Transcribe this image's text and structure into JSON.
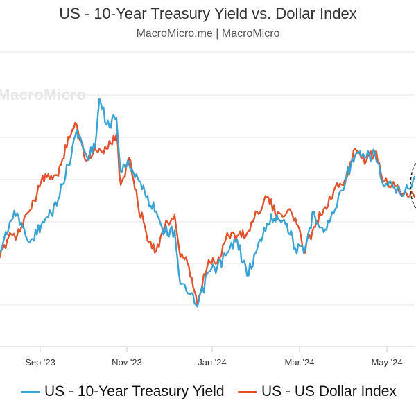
{
  "header": {
    "title": "US - 10-Year Treasury Yield vs. Dollar Index",
    "subtitle": "MacroMicro.me | MacroMicro",
    "watermark": "MacroMicro"
  },
  "colors": {
    "treasury_yield": "#3aa3d2",
    "dollar_index": "#e0532d",
    "gridline": "#e6e6e6",
    "axis": "#cccccc"
  },
  "chart_data": {
    "type": "line",
    "title": "US - 10-Year Treasury Yield vs. Dollar Index",
    "subtitle": "MacroMicro.me | MacroMicro",
    "xlabel": "",
    "ylabel": "",
    "x_ticks": [
      "Sep '23",
      "Nov '23",
      "Jan '24",
      "Mar '24",
      "May '24"
    ],
    "grid": true,
    "legend_position": "bottom",
    "x_range": [
      "2023-08-10",
      "2024-05-28"
    ],
    "series": [
      {
        "name": "US - 10-Year Treasury Yield",
        "points": [
          [
            "2023-08-10",
            4.11
          ],
          [
            "2023-08-17",
            4.28
          ],
          [
            "2023-08-22",
            4.33
          ],
          [
            "2023-08-28",
            4.2
          ],
          [
            "2023-09-01",
            4.18
          ],
          [
            "2023-09-08",
            4.26
          ],
          [
            "2023-09-15",
            4.33
          ],
          [
            "2023-09-20",
            4.41
          ],
          [
            "2023-09-27",
            4.61
          ],
          [
            "2023-10-03",
            4.81
          ],
          [
            "2023-10-10",
            4.66
          ],
          [
            "2023-10-16",
            4.71
          ],
          [
            "2023-10-19",
            4.99
          ],
          [
            "2023-10-24",
            4.84
          ],
          [
            "2023-10-31",
            4.88
          ],
          [
            "2023-11-03",
            4.57
          ],
          [
            "2023-11-09",
            4.62
          ],
          [
            "2023-11-15",
            4.53
          ],
          [
            "2023-11-21",
            4.42
          ],
          [
            "2023-11-28",
            4.34
          ],
          [
            "2023-12-04",
            4.22
          ],
          [
            "2023-12-11",
            4.23
          ],
          [
            "2023-12-15",
            3.92
          ],
          [
            "2023-12-20",
            3.87
          ],
          [
            "2023-12-27",
            3.79
          ],
          [
            "2024-01-04",
            3.99
          ],
          [
            "2024-01-10",
            4.02
          ],
          [
            "2024-01-17",
            4.1
          ],
          [
            "2024-01-24",
            4.18
          ],
          [
            "2024-01-31",
            3.97
          ],
          [
            "2024-02-07",
            4.12
          ],
          [
            "2024-02-14",
            4.27
          ],
          [
            "2024-02-21",
            4.32
          ],
          [
            "2024-02-28",
            4.27
          ],
          [
            "2024-03-05",
            4.13
          ],
          [
            "2024-03-11",
            4.1
          ],
          [
            "2024-03-18",
            4.34
          ],
          [
            "2024-03-25",
            4.22
          ],
          [
            "2024-04-01",
            4.33
          ],
          [
            "2024-04-10",
            4.55
          ],
          [
            "2024-04-16",
            4.66
          ],
          [
            "2024-04-24",
            4.65
          ],
          [
            "2024-04-30",
            4.68
          ],
          [
            "2024-05-06",
            4.49
          ],
          [
            "2024-05-13",
            4.48
          ],
          [
            "2024-05-20",
            4.43
          ],
          [
            "2024-05-28",
            4.54
          ]
        ]
      },
      {
        "name": "US - US Dollar Index",
        "points": [
          [
            "2023-08-10",
            102.6
          ],
          [
            "2023-08-17",
            103.4
          ],
          [
            "2023-08-22",
            103.3
          ],
          [
            "2023-08-28",
            104.0
          ],
          [
            "2023-09-01",
            104.2
          ],
          [
            "2023-09-08",
            105.1
          ],
          [
            "2023-09-15",
            105.3
          ],
          [
            "2023-09-20",
            105.3
          ],
          [
            "2023-09-27",
            106.6
          ],
          [
            "2023-10-03",
            107.0
          ],
          [
            "2023-10-10",
            105.8
          ],
          [
            "2023-10-16",
            106.2
          ],
          [
            "2023-10-19",
            106.2
          ],
          [
            "2023-10-24",
            106.2
          ],
          [
            "2023-10-31",
            106.7
          ],
          [
            "2023-11-03",
            105.0
          ],
          [
            "2023-11-09",
            105.9
          ],
          [
            "2023-11-15",
            104.4
          ],
          [
            "2023-11-21",
            103.4
          ],
          [
            "2023-11-28",
            102.8
          ],
          [
            "2023-12-04",
            103.6
          ],
          [
            "2023-12-11",
            104.0
          ],
          [
            "2023-12-15",
            102.6
          ],
          [
            "2023-12-20",
            102.4
          ],
          [
            "2023-12-27",
            101.0
          ],
          [
            "2024-01-04",
            102.5
          ],
          [
            "2024-01-10",
            102.4
          ],
          [
            "2024-01-17",
            103.4
          ],
          [
            "2024-01-24",
            103.3
          ],
          [
            "2024-01-31",
            103.4
          ],
          [
            "2024-02-07",
            104.1
          ],
          [
            "2024-02-14",
            104.6
          ],
          [
            "2024-02-21",
            104.0
          ],
          [
            "2024-02-28",
            104.1
          ],
          [
            "2024-03-05",
            103.9
          ],
          [
            "2024-03-11",
            102.8
          ],
          [
            "2024-03-18",
            103.6
          ],
          [
            "2024-03-25",
            104.2
          ],
          [
            "2024-04-01",
            104.8
          ],
          [
            "2024-04-10",
            105.2
          ],
          [
            "2024-04-16",
            106.2
          ],
          [
            "2024-04-24",
            105.8
          ],
          [
            "2024-04-30",
            106.1
          ],
          [
            "2024-05-06",
            105.1
          ],
          [
            "2024-05-13",
            105.1
          ],
          [
            "2024-05-20",
            104.7
          ],
          [
            "2024-05-28",
            104.6
          ]
        ]
      }
    ]
  },
  "legend": [
    {
      "label": "US - 10-Year Treasury Yield"
    },
    {
      "label": "US - US Dollar Index"
    }
  ]
}
